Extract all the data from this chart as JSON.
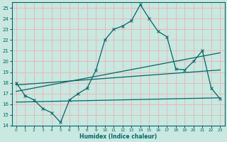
{
  "xlabel": "Humidex (Indice chaleur)",
  "xlim": [
    -0.5,
    23.5
  ],
  "ylim": [
    14,
    25.5
  ],
  "yticks": [
    14,
    15,
    16,
    17,
    18,
    19,
    20,
    21,
    22,
    23,
    24,
    25
  ],
  "xticks": [
    0,
    1,
    2,
    3,
    4,
    5,
    6,
    7,
    8,
    9,
    10,
    11,
    12,
    13,
    14,
    15,
    16,
    17,
    18,
    19,
    20,
    21,
    22,
    23
  ],
  "bg_color": "#c8e8e0",
  "grid_color": "#e8b8b8",
  "line_color": "#006868",
  "line1_x": [
    0,
    1,
    2,
    3,
    4,
    5,
    6,
    7,
    8,
    9,
    10,
    11,
    12,
    13,
    14,
    15,
    16,
    17,
    18,
    19,
    20,
    21,
    22,
    23
  ],
  "line1_y": [
    18.0,
    16.8,
    16.4,
    15.6,
    15.2,
    14.3,
    16.4,
    17.0,
    17.5,
    19.2,
    22.0,
    23.0,
    23.3,
    23.8,
    25.3,
    24.0,
    22.8,
    22.3,
    19.3,
    19.2,
    20.0,
    21.0,
    17.5,
    16.5
  ],
  "line2_x": [
    0,
    23
  ],
  "line2_y": [
    17.2,
    20.8
  ],
  "line3_x": [
    0,
    23
  ],
  "line3_y": [
    17.8,
    19.2
  ],
  "line4_x": [
    0,
    23
  ],
  "line4_y": [
    16.2,
    16.6
  ]
}
